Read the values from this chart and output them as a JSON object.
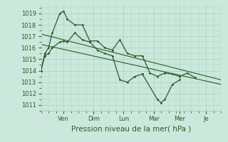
{
  "background_color": "#cce8dc",
  "grid_color": "#aad4c4",
  "line_color": "#2a5c2a",
  "xlabel": "Pression niveau de la mer( hPa )",
  "ylim": [
    1010.5,
    1019.8
  ],
  "yticks": [
    1011,
    1012,
    1013,
    1014,
    1015,
    1016,
    1017,
    1018,
    1019
  ],
  "xlim": [
    0,
    24
  ],
  "x_tick_positions": [
    3,
    7,
    11,
    15,
    18.5,
    22
  ],
  "x_tick_labels": [
    "Ven",
    "Dim",
    "Lun",
    "Mar",
    "Mer",
    "Je"
  ],
  "line1_x": [
    0,
    0.5,
    1,
    1.5,
    2.5,
    3.0,
    3.5,
    4.5,
    5.5,
    6.5,
    7.5,
    8.5,
    9.5,
    10.5,
    11.5,
    12.5,
    13.5,
    14.5,
    15.5,
    16.5,
    17.5,
    18.5,
    19.5,
    20.5
  ],
  "line1_y": [
    1014.0,
    1015.5,
    1016.0,
    1017.3,
    1019.0,
    1019.2,
    1018.5,
    1018.0,
    1018.0,
    1016.6,
    1016.6,
    1016.0,
    1015.8,
    1016.7,
    1015.5,
    1015.3,
    1015.3,
    1013.8,
    1013.5,
    1013.8,
    1013.7,
    1013.5,
    1013.8,
    1013.4
  ],
  "line2_x": [
    0,
    0.5,
    1,
    1.5,
    2.5,
    3.0,
    3.5,
    4.5,
    5.5,
    6.5,
    7.5,
    8.5,
    9.5,
    10.5,
    11.5,
    12.5,
    13.5
  ],
  "line2_y": [
    1014.0,
    1015.3,
    1015.5,
    1016.0,
    1016.5,
    1016.6,
    1016.5,
    1017.3,
    1016.7,
    1016.5,
    1015.8,
    1015.5,
    1015.3,
    1013.2,
    1013.0,
    1013.5,
    1013.7
  ],
  "dip_x": [
    13.5,
    15.5,
    16.0,
    16.5,
    17.5,
    18.5
  ],
  "dip_y": [
    1013.7,
    1011.5,
    1011.2,
    1011.5,
    1012.8,
    1013.2
  ],
  "trend1_x": [
    0,
    24
  ],
  "trend1_y": [
    1017.2,
    1013.2
  ],
  "trend2_x": [
    0,
    24
  ],
  "trend2_y": [
    1016.3,
    1012.8
  ]
}
